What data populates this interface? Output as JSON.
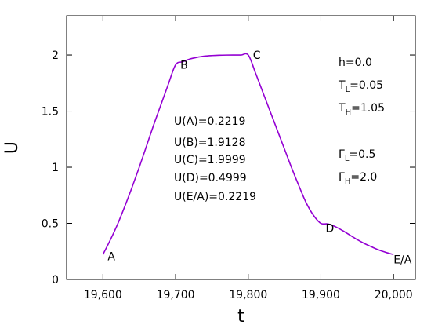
{
  "chart_data": {
    "type": "line",
    "title": "",
    "xlabel": "t",
    "ylabel": "U",
    "xlim": [
      19550,
      20030
    ],
    "ylim": [
      0,
      2.35
    ],
    "grid": false,
    "legend": "none",
    "x_ticks": [
      19600,
      19700,
      19800,
      19900,
      20000
    ],
    "x_tick_labels": [
      "19,600",
      "19,700",
      "19,800",
      "19,900",
      "20,000"
    ],
    "y_ticks": [
      0,
      0.5,
      1,
      1.5,
      2
    ],
    "y_tick_labels": [
      "0",
      "0.5",
      "1",
      "1.5",
      "2"
    ],
    "series": [
      {
        "color": "#9400d3",
        "x": [
          19600,
          19610,
          19620,
          19630,
          19640,
          19650,
          19660,
          19670,
          19680,
          19690,
          19700,
          19710,
          19720,
          19730,
          19740,
          19750,
          19760,
          19770,
          19780,
          19790,
          19800,
          19810,
          19820,
          19830,
          19840,
          19850,
          19860,
          19870,
          19880,
          19890,
          19900,
          19910,
          19920,
          19930,
          19940,
          19950,
          19960,
          19970,
          19980,
          19990,
          20000
        ],
        "y": [
          0.2219,
          0.35,
          0.49,
          0.65,
          0.82,
          1.0,
          1.19,
          1.38,
          1.56,
          1.74,
          1.9128,
          1.94,
          1.965,
          1.98,
          1.99,
          1.995,
          1.998,
          1.9995,
          1.9999,
          1.9999,
          1.9999,
          1.84,
          1.67,
          1.5,
          1.33,
          1.16,
          0.99,
          0.83,
          0.68,
          0.57,
          0.4999,
          0.495,
          0.47,
          0.435,
          0.395,
          0.355,
          0.32,
          0.29,
          0.262,
          0.24,
          0.2219
        ]
      }
    ],
    "points": [
      {
        "label": "A",
        "x": 19600,
        "y": 0.2219
      },
      {
        "label": "B",
        "x": 19700,
        "y": 1.9128
      },
      {
        "label": "C",
        "x": 19800,
        "y": 1.9999
      },
      {
        "label": "D",
        "x": 19900,
        "y": 0.4999
      },
      {
        "label": "E/A",
        "x": 20000,
        "y": 0.2219
      }
    ],
    "value_annotations": [
      "U(A)=0.2219",
      "U(B)=1.9128",
      "U(C)=1.9999",
      "U(D)=0.4999",
      "U(E/A)=0.2219"
    ],
    "parameters": {
      "h": {
        "symbol": "h",
        "sub": "",
        "value": "=0.0"
      },
      "tl": {
        "symbol": "T",
        "sub": "L",
        "value": "=0.05"
      },
      "th": {
        "symbol": "T",
        "sub": "H",
        "value": "=1.05"
      },
      "gl": {
        "symbol": "Γ",
        "sub": "L",
        "value": "=0.5"
      },
      "gh": {
        "symbol": "Γ",
        "sub": "H",
        "value": "=2.0"
      }
    }
  }
}
